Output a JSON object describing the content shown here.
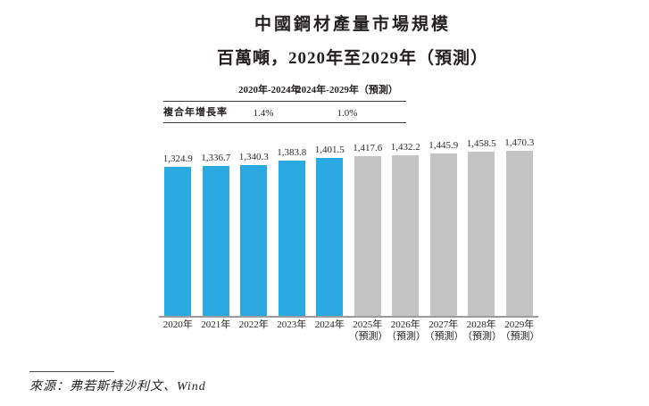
{
  "title": "中國鋼材產量市場規模",
  "subtitle": "百萬噸，2020年至2029年（預測）",
  "cagr_table": {
    "row_label": "複合年增長率",
    "columns": [
      {
        "period": "2020年-2024年",
        "value": "1.4%"
      },
      {
        "period": "2024年-2029年（預測）",
        "value": "1.0%"
      }
    ]
  },
  "chart_data": {
    "type": "bar",
    "title": "中國鋼材產量市場規模",
    "ylabel": "百萬噸",
    "ylim": [
      0,
      1500
    ],
    "grid": false,
    "legend_position": "none",
    "categories": [
      "2020年",
      "2021年",
      "2022年",
      "2023年",
      "2024年",
      "2025年（預測）",
      "2026年（預測）",
      "2027年（預測）",
      "2028年（預測）",
      "2029年（預測）"
    ],
    "values": [
      1324.9,
      1336.7,
      1340.3,
      1383.8,
      1401.5,
      1417.6,
      1432.2,
      1445.9,
      1458.5,
      1470.3
    ],
    "bars": [
      {
        "year": "2020年",
        "note": "",
        "value": 1324.9,
        "label": "1,324.9",
        "type": "actual"
      },
      {
        "year": "2021年",
        "note": "",
        "value": 1336.7,
        "label": "1,336.7",
        "type": "actual"
      },
      {
        "year": "2022年",
        "note": "",
        "value": 1340.3,
        "label": "1,340.3",
        "type": "actual"
      },
      {
        "year": "2023年",
        "note": "",
        "value": 1383.8,
        "label": "1,383.8",
        "type": "actual"
      },
      {
        "year": "2024年",
        "note": "",
        "value": 1401.5,
        "label": "1,401.5",
        "type": "actual"
      },
      {
        "year": "2025年",
        "note": "（預測）",
        "value": 1417.6,
        "label": "1,417.6",
        "type": "forecast"
      },
      {
        "year": "2026年",
        "note": "（預測）",
        "value": 1432.2,
        "label": "1,432.2",
        "type": "forecast"
      },
      {
        "year": "2027年",
        "note": "（預測）",
        "value": 1445.9,
        "label": "1,445.9",
        "type": "forecast"
      },
      {
        "year": "2028年",
        "note": "（預測）",
        "value": 1458.5,
        "label": "1,458.5",
        "type": "forecast"
      },
      {
        "year": "2029年",
        "note": "（預測）",
        "value": 1470.3,
        "label": "1,470.3",
        "type": "forecast"
      }
    ]
  },
  "colors": {
    "actual_bar": "#29A9DF",
    "forecast_bar": "#C4C4C2",
    "axis_line": "#9B9B9B",
    "text": "#231F20"
  },
  "source": "來源：弗若斯特沙利文、Wind"
}
